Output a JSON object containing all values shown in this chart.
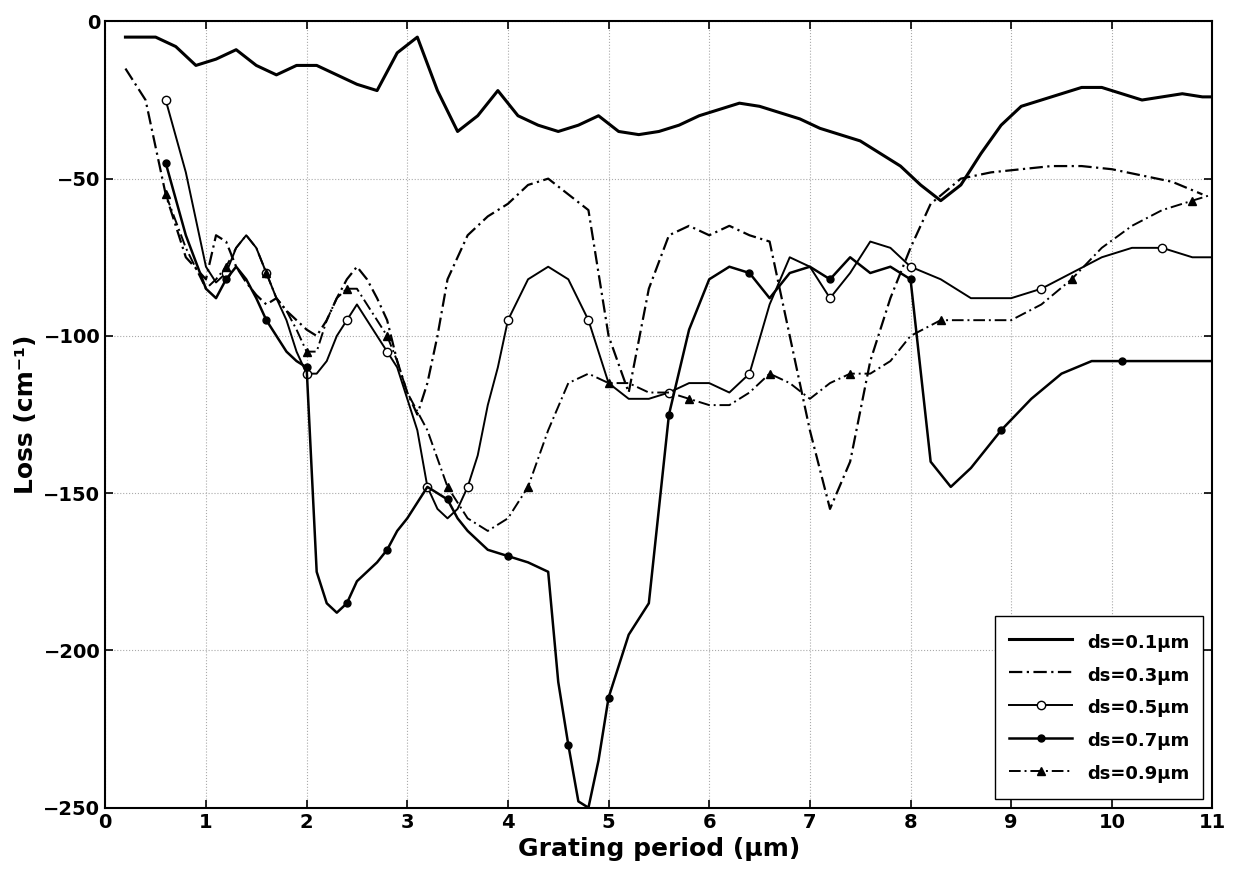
{
  "xlabel": "Grating period (μm)",
  "ylabel": "Loss (cm⁻¹)",
  "xlim": [
    0,
    11
  ],
  "ylim": [
    -250,
    0
  ],
  "xticks": [
    0,
    1,
    2,
    3,
    4,
    5,
    6,
    7,
    8,
    9,
    10,
    11
  ],
  "yticks": [
    0,
    -50,
    -100,
    -150,
    -200,
    -250
  ],
  "legend_entries": [
    "ds=0.1μm",
    "ds=0.3μm",
    "ds=0.5μm",
    "ds=0.7μm",
    "ds=0.9μm"
  ],
  "ds01_x": [
    0.2,
    0.5,
    0.7,
    0.9,
    1.1,
    1.3,
    1.5,
    1.7,
    1.9,
    2.1,
    2.3,
    2.5,
    2.7,
    2.9,
    3.1,
    3.3,
    3.5,
    3.7,
    3.9,
    4.1,
    4.3,
    4.5,
    4.7,
    4.9,
    5.1,
    5.3,
    5.5,
    5.7,
    5.9,
    6.1,
    6.3,
    6.5,
    6.7,
    6.9,
    7.1,
    7.3,
    7.5,
    7.7,
    7.9,
    8.1,
    8.3,
    8.5,
    8.7,
    8.9,
    9.1,
    9.3,
    9.5,
    9.7,
    9.9,
    10.1,
    10.3,
    10.5,
    10.7,
    10.9,
    11.0
  ],
  "ds01_y": [
    -5,
    -5,
    -8,
    -14,
    -12,
    -9,
    -14,
    -17,
    -14,
    -14,
    -17,
    -20,
    -22,
    -10,
    -5,
    -22,
    -35,
    -30,
    -22,
    -30,
    -33,
    -35,
    -33,
    -30,
    -35,
    -36,
    -35,
    -33,
    -30,
    -28,
    -26,
    -27,
    -29,
    -31,
    -34,
    -36,
    -38,
    -42,
    -46,
    -52,
    -57,
    -52,
    -42,
    -33,
    -27,
    -25,
    -23,
    -21,
    -21,
    -23,
    -25,
    -24,
    -23,
    -24,
    -24
  ],
  "ds03_x": [
    0.2,
    0.4,
    0.6,
    0.8,
    1.0,
    1.1,
    1.2,
    1.3,
    1.4,
    1.5,
    1.6,
    1.7,
    1.8,
    1.9,
    2.0,
    2.1,
    2.2,
    2.3,
    2.4,
    2.5,
    2.6,
    2.7,
    2.8,
    2.9,
    3.0,
    3.1,
    3.2,
    3.3,
    3.4,
    3.5,
    3.6,
    3.7,
    3.8,
    3.9,
    4.0,
    4.2,
    4.4,
    4.6,
    4.8,
    5.0,
    5.2,
    5.4,
    5.6,
    5.8,
    6.0,
    6.2,
    6.4,
    6.6,
    6.8,
    7.0,
    7.2,
    7.4,
    7.6,
    7.8,
    8.0,
    8.2,
    8.5,
    8.8,
    9.1,
    9.4,
    9.7,
    10.0,
    10.3,
    10.6,
    10.9
  ],
  "ds03_y": [
    -15,
    -25,
    -55,
    -75,
    -82,
    -68,
    -70,
    -78,
    -83,
    -87,
    -90,
    -88,
    -92,
    -95,
    -98,
    -100,
    -95,
    -88,
    -82,
    -78,
    -82,
    -88,
    -95,
    -108,
    -118,
    -125,
    -115,
    -100,
    -82,
    -75,
    -68,
    -65,
    -62,
    -60,
    -58,
    -52,
    -50,
    -55,
    -60,
    -100,
    -118,
    -85,
    -68,
    -65,
    -68,
    -65,
    -68,
    -70,
    -100,
    -130,
    -155,
    -140,
    -108,
    -88,
    -72,
    -58,
    -50,
    -48,
    -47,
    -46,
    -46,
    -47,
    -49,
    -51,
    -55
  ],
  "ds05_x": [
    0.6,
    0.8,
    1.0,
    1.1,
    1.2,
    1.3,
    1.4,
    1.5,
    1.6,
    1.7,
    1.8,
    1.9,
    2.0,
    2.1,
    2.2,
    2.3,
    2.4,
    2.5,
    2.6,
    2.7,
    2.8,
    2.9,
    3.0,
    3.1,
    3.2,
    3.3,
    3.4,
    3.5,
    3.6,
    3.7,
    3.8,
    3.9,
    4.0,
    4.2,
    4.4,
    4.6,
    4.8,
    5.0,
    5.2,
    5.4,
    5.6,
    5.8,
    6.0,
    6.2,
    6.4,
    6.6,
    6.8,
    7.0,
    7.2,
    7.4,
    7.6,
    7.8,
    8.0,
    8.3,
    8.6,
    9.0,
    9.3,
    9.6,
    9.9,
    10.2,
    10.5,
    10.8,
    11.0
  ],
  "ds05_y": [
    -25,
    -48,
    -78,
    -83,
    -80,
    -72,
    -68,
    -72,
    -80,
    -88,
    -95,
    -105,
    -112,
    -112,
    -108,
    -100,
    -95,
    -90,
    -95,
    -100,
    -105,
    -110,
    -120,
    -130,
    -148,
    -155,
    -158,
    -155,
    -148,
    -138,
    -122,
    -110,
    -95,
    -82,
    -78,
    -82,
    -95,
    -115,
    -120,
    -120,
    -118,
    -115,
    -115,
    -118,
    -112,
    -90,
    -75,
    -78,
    -88,
    -80,
    -70,
    -72,
    -78,
    -82,
    -88,
    -88,
    -85,
    -80,
    -75,
    -72,
    -72,
    -75,
    -75
  ],
  "ds07_x": [
    0.6,
    0.8,
    1.0,
    1.1,
    1.2,
    1.3,
    1.4,
    1.5,
    1.6,
    1.7,
    1.8,
    1.9,
    2.0,
    2.1,
    2.2,
    2.3,
    2.4,
    2.5,
    2.6,
    2.7,
    2.8,
    2.9,
    3.0,
    3.2,
    3.4,
    3.5,
    3.6,
    3.8,
    4.0,
    4.2,
    4.4,
    4.5,
    4.6,
    4.7,
    4.8,
    4.9,
    5.0,
    5.1,
    5.2,
    5.4,
    5.6,
    5.8,
    6.0,
    6.2,
    6.4,
    6.6,
    6.8,
    7.0,
    7.2,
    7.4,
    7.6,
    7.8,
    8.0,
    8.2,
    8.4,
    8.6,
    8.9,
    9.2,
    9.5,
    9.8,
    10.1,
    10.4,
    10.7,
    11.0
  ],
  "ds07_y": [
    -45,
    -68,
    -85,
    -88,
    -82,
    -78,
    -82,
    -88,
    -95,
    -100,
    -105,
    -108,
    -110,
    -175,
    -185,
    -188,
    -185,
    -178,
    -175,
    -172,
    -168,
    -162,
    -158,
    -148,
    -152,
    -158,
    -162,
    -168,
    -170,
    -172,
    -175,
    -210,
    -230,
    -248,
    -250,
    -235,
    -215,
    -205,
    -195,
    -185,
    -125,
    -98,
    -82,
    -78,
    -80,
    -88,
    -80,
    -78,
    -82,
    -75,
    -80,
    -78,
    -82,
    -140,
    -148,
    -142,
    -130,
    -120,
    -112,
    -108,
    -108,
    -108,
    -108,
    -108
  ],
  "ds09_x": [
    0.6,
    0.8,
    1.0,
    1.1,
    1.2,
    1.3,
    1.4,
    1.5,
    1.6,
    1.7,
    1.8,
    1.9,
    2.0,
    2.1,
    2.2,
    2.3,
    2.4,
    2.5,
    2.6,
    2.7,
    2.8,
    2.9,
    3.0,
    3.2,
    3.4,
    3.6,
    3.8,
    4.0,
    4.2,
    4.4,
    4.6,
    4.8,
    5.0,
    5.2,
    5.4,
    5.6,
    5.8,
    6.0,
    6.2,
    6.4,
    6.6,
    6.8,
    7.0,
    7.2,
    7.4,
    7.6,
    7.8,
    8.0,
    8.3,
    8.6,
    9.0,
    9.3,
    9.6,
    9.9,
    10.2,
    10.5,
    10.8,
    11.0
  ],
  "ds09_y": [
    -55,
    -72,
    -85,
    -82,
    -78,
    -72,
    -68,
    -72,
    -80,
    -88,
    -92,
    -98,
    -105,
    -105,
    -95,
    -88,
    -85,
    -85,
    -90,
    -95,
    -100,
    -108,
    -118,
    -130,
    -148,
    -158,
    -162,
    -158,
    -148,
    -130,
    -115,
    -112,
    -115,
    -115,
    -118,
    -118,
    -120,
    -122,
    -122,
    -118,
    -112,
    -115,
    -120,
    -115,
    -112,
    -112,
    -108,
    -100,
    -95,
    -95,
    -95,
    -90,
    -82,
    -72,
    -65,
    -60,
    -57,
    -55
  ]
}
